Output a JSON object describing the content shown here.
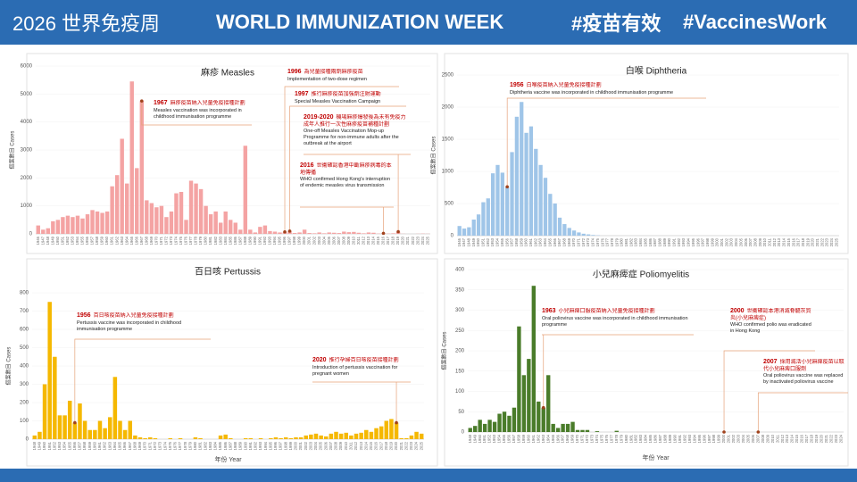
{
  "header": {
    "title_zh": "2026 世界免疫周",
    "title_en": "WORLD IMMUNIZATION WEEK",
    "tag_zh": "#疫苗有效",
    "tag_en": "#VaccinesWork"
  },
  "chart_data": [
    {
      "type": "bar",
      "title": "麻疹 Measles",
      "ylabel": "個案數目 Cases",
      "color": "#f4a3a3",
      "ylim": [
        0,
        6000
      ],
      "yticks": [
        0,
        1000,
        2000,
        3000,
        4000,
        5000,
        6000
      ],
      "categories": [
        "1946",
        "1947",
        "1948",
        "1949",
        "1950",
        "1951",
        "1952",
        "1953",
        "1954",
        "1955",
        "1956",
        "1957",
        "1958",
        "1959",
        "1960",
        "1961",
        "1962",
        "1963",
        "1964",
        "1965",
        "1966",
        "1967",
        "1968",
        "1969",
        "1970",
        "1971",
        "1972",
        "1973",
        "1974",
        "1975",
        "1976",
        "1977",
        "1978",
        "1979",
        "1980",
        "1981",
        "1982",
        "1983",
        "1984",
        "1985",
        "1986",
        "1987",
        "1988",
        "1989",
        "1990",
        "1991",
        "1992",
        "1993",
        "1994",
        "1995",
        "1996",
        "1997",
        "1998",
        "1999",
        "2000",
        "2001",
        "2002",
        "2003",
        "2004",
        "2005",
        "2006",
        "2007",
        "2008",
        "2009",
        "2010",
        "2011",
        "2012",
        "2013",
        "2014",
        "2015",
        "2016",
        "2017",
        "2018",
        "2019",
        "2020",
        "2021",
        "2022",
        "2023",
        "2024",
        "2025"
      ],
      "values": [
        300,
        150,
        200,
        450,
        500,
        600,
        650,
        600,
        650,
        550,
        700,
        850,
        800,
        750,
        800,
        1700,
        2100,
        3400,
        1800,
        5450,
        2350,
        4750,
        1200,
        1100,
        950,
        1000,
        600,
        800,
        1450,
        1500,
        500,
        1900,
        1800,
        1600,
        1000,
        700,
        800,
        400,
        800,
        500,
        400,
        150,
        3150,
        150,
        50,
        250,
        300,
        100,
        80,
        50,
        70,
        100,
        30,
        50,
        150,
        30,
        20,
        50,
        20,
        50,
        40,
        30,
        80,
        60,
        70,
        40,
        20,
        50,
        40,
        10,
        20,
        10,
        20,
        80,
        5,
        0,
        0,
        5,
        10,
        5
      ],
      "annotations": [
        {
          "year": "1967",
          "zh": "麻疹疫苗納入兒童免疫接種計劃",
          "en": "Measles vaccination was incorporated in childhood immunisation programme"
        },
        {
          "year": "1996",
          "zh": "為兒童接種兩劑麻疹疫苗",
          "en": "Implementation of two-dose regimen"
        },
        {
          "year": "1997",
          "zh": "推行麻疹疫苗加強劑注射運動",
          "en": "Special Measles Vaccination Campaign"
        },
        {
          "year": "2019-2020",
          "zh": "機場麻疹爆發後為未有免疫力成年人推行一次性麻疹疫苗補種計劃",
          "en": "One-off Measles Vaccination Mop-up Programme for non-immune adults after the outbreak at the airport"
        },
        {
          "year": "2016",
          "zh": "世衞確認香港中斷麻疹病毒的本地傳播",
          "en": "WHO confirmed Hong Kong's interruption of endemic measles virus transmission"
        }
      ]
    },
    {
      "type": "bar",
      "title": "白喉 Diphtheria",
      "ylabel": "個案數目 Cases",
      "color": "#9fc5e8",
      "ylim": [
        0,
        2500
      ],
      "yticks": [
        0,
        500,
        1000,
        1500,
        2000,
        2500
      ],
      "categories": [
        "1946",
        "1947",
        "1948",
        "1949",
        "1950",
        "1951",
        "1952",
        "1953",
        "1954",
        "1955",
        "1956",
        "1957",
        "1958",
        "1959",
        "1960",
        "1961",
        "1962",
        "1963",
        "1964",
        "1965",
        "1966",
        "1967",
        "1968",
        "1969",
        "1970",
        "1971",
        "1972",
        "1973",
        "1974",
        "1975",
        "1976",
        "1977",
        "1978",
        "1979",
        "1980",
        "1981",
        "1982",
        "1983",
        "1984",
        "1985",
        "1986",
        "1987",
        "1988",
        "1989",
        "1990",
        "1991",
        "1992",
        "1993",
        "1994",
        "1995",
        "1996",
        "1997",
        "1998",
        "1999",
        "2000",
        "2001",
        "2002",
        "2003",
        "2004",
        "2005",
        "2006",
        "2007",
        "2008",
        "2009",
        "2010",
        "2011",
        "2012",
        "2013",
        "2014",
        "2015",
        "2016",
        "2017",
        "2018",
        "2019",
        "2020",
        "2021",
        "2022",
        "2023",
        "2024",
        "2025"
      ],
      "values": [
        150,
        110,
        130,
        250,
        330,
        520,
        580,
        970,
        1100,
        980,
        760,
        1300,
        1850,
        2080,
        1600,
        1700,
        1350,
        1100,
        900,
        650,
        500,
        280,
        180,
        120,
        80,
        50,
        30,
        20,
        10,
        5,
        0,
        0,
        0,
        0,
        0,
        0,
        0,
        0,
        0,
        0,
        0,
        0,
        0,
        0,
        0,
        0,
        0,
        0,
        0,
        0,
        0,
        0,
        0,
        0,
        0,
        0,
        0,
        0,
        0,
        0,
        0,
        0,
        0,
        0,
        0,
        0,
        0,
        0,
        0,
        0,
        0,
        0,
        0,
        0,
        0,
        0,
        0,
        0,
        0,
        0
      ],
      "annotations": [
        {
          "year": "1956",
          "zh": "白喉疫苗納入兒童免疫接種計劃",
          "en": "Diphtheria vaccine was incorporated in childhood immunisation programme"
        }
      ]
    },
    {
      "type": "bar",
      "title": "百日咳 Pertussis",
      "ylabel": "個案數目 Cases",
      "xlabel": "年份 Year",
      "color": "#f5b800",
      "ylim": [
        0,
        800
      ],
      "yticks": [
        0,
        100,
        200,
        300,
        400,
        500,
        600,
        700,
        800
      ],
      "categories": [
        "1948",
        "1949",
        "1950",
        "1951",
        "1952",
        "1953",
        "1954",
        "1955",
        "1956",
        "1957",
        "1958",
        "1959",
        "1960",
        "1961",
        "1962",
        "1963",
        "1964",
        "1965",
        "1966",
        "1967",
        "1968",
        "1969",
        "1970",
        "1971",
        "1972",
        "1973",
        "1974",
        "1975",
        "1976",
        "1977",
        "1978",
        "1979",
        "1980",
        "1981",
        "1982",
        "1983",
        "1984",
        "1985",
        "1986",
        "1987",
        "1988",
        "1989",
        "1990",
        "1991",
        "1992",
        "1993",
        "1994",
        "1995",
        "1996",
        "1997",
        "1998",
        "1999",
        "2000",
        "2001",
        "2002",
        "2003",
        "2004",
        "2005",
        "2006",
        "2007",
        "2008",
        "2009",
        "2010",
        "2011",
        "2012",
        "2013",
        "2014",
        "2015",
        "2016",
        "2017",
        "2018",
        "2019",
        "2020",
        "2021",
        "2022",
        "2023",
        "2024",
        "2025"
      ],
      "values": [
        20,
        40,
        300,
        750,
        450,
        130,
        130,
        210,
        90,
        195,
        100,
        50,
        50,
        100,
        60,
        120,
        340,
        100,
        50,
        100,
        20,
        10,
        5,
        10,
        5,
        0,
        0,
        5,
        0,
        5,
        0,
        0,
        10,
        5,
        0,
        0,
        0,
        20,
        25,
        5,
        0,
        0,
        5,
        5,
        0,
        5,
        0,
        5,
        10,
        5,
        10,
        5,
        10,
        10,
        20,
        25,
        30,
        20,
        15,
        30,
        40,
        30,
        35,
        20,
        30,
        35,
        50,
        40,
        60,
        70,
        100,
        110,
        90,
        5,
        5,
        20,
        40,
        30
      ],
      "annotations": [
        {
          "year": "1956",
          "zh": "百日咳疫苗納入兒童免疫接種計劃",
          "en": "Pertussis vaccine was incorporated in childhood immunisation programme"
        },
        {
          "year": "2020",
          "zh": "推行孕婦百日咳疫苗接種計劃",
          "en": "Introduction of pertussis vaccination for pregnant women"
        }
      ]
    },
    {
      "type": "bar",
      "title": "小兒麻痺症 Poliomyelitis",
      "ylabel": "個案數目 Cases",
      "xlabel": "年份 Year",
      "color": "#4a7c2a",
      "ylim": [
        0,
        400
      ],
      "yticks": [
        0,
        50,
        100,
        150,
        200,
        250,
        300,
        350,
        400
      ],
      "categories": [
        "1948",
        "1949",
        "1950",
        "1951",
        "1952",
        "1953",
        "1954",
        "1955",
        "1956",
        "1957",
        "1958",
        "1959",
        "1960",
        "1961",
        "1962",
        "1963",
        "1964",
        "1965",
        "1966",
        "1967",
        "1968",
        "1969",
        "1970",
        "1971",
        "1972",
        "1973",
        "1974",
        "1975",
        "1976",
        "1977",
        "1978",
        "1979",
        "1980",
        "1981",
        "1982",
        "1983",
        "1984",
        "1985",
        "1986",
        "1987",
        "1988",
        "1989",
        "1990",
        "1991",
        "1992",
        "1993",
        "1994",
        "1995",
        "1996",
        "1997",
        "1998",
        "1999",
        "2000",
        "2001",
        "2002",
        "2003",
        "2004",
        "2005",
        "2006",
        "2007",
        "2008",
        "2009",
        "2010",
        "2011",
        "2012",
        "2013",
        "2014",
        "2015",
        "2016",
        "2017",
        "2018",
        "2019",
        "2020",
        "2021",
        "2022",
        "2023",
        "2024"
      ],
      "values": [
        10,
        15,
        30,
        20,
        30,
        25,
        45,
        50,
        40,
        60,
        260,
        140,
        180,
        360,
        75,
        60,
        140,
        20,
        10,
        20,
        20,
        25,
        5,
        5,
        5,
        0,
        2,
        0,
        0,
        0,
        3,
        0,
        0,
        0,
        0,
        0,
        0,
        0,
        0,
        0,
        0,
        0,
        0,
        0,
        0,
        0,
        0,
        0,
        0,
        0,
        0,
        0,
        0,
        0,
        0,
        0,
        0,
        0,
        0,
        0,
        0,
        0,
        0,
        0,
        0,
        0,
        0,
        0,
        0,
        0,
        0,
        0,
        0,
        0,
        0,
        0,
        0
      ],
      "annotations": [
        {
          "year": "1963",
          "zh": "小兒麻痺口服疫苗納入兒童免疫接種計劃",
          "en": "Oral poliovirus vaccine was incorporated in childhood immunisation programme"
        },
        {
          "year": "2000",
          "zh": "世衞確認本港消滅脊髓灰質炎(小兒麻痺症)",
          "en": "WHO confirmed polio was eradicated in Hong Kong"
        },
        {
          "year": "2007",
          "zh": "採用滅活小兒麻痺疫苗以取代小兒麻痺口服劑",
          "en": "Oral poliovirus vaccine was replaced by inactivated poliovirus vaccine"
        }
      ]
    }
  ]
}
